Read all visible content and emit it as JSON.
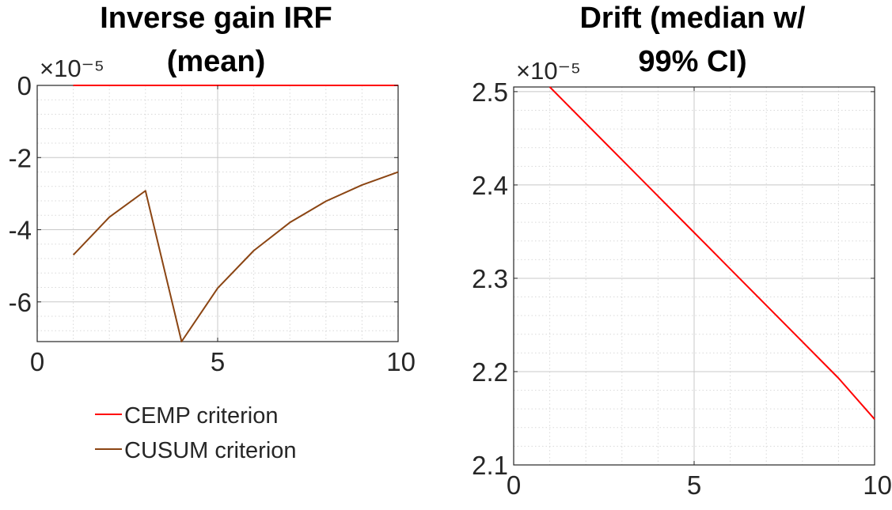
{
  "chart_data": [
    {
      "type": "line",
      "title_lines": [
        "Inverse gain IRF",
        "(mean)"
      ],
      "y_exponent": "×10⁻⁵",
      "xlim": [
        0,
        10
      ],
      "ylim": [
        -7.1,
        0
      ],
      "x_ticks": [
        "0",
        "5",
        "10"
      ],
      "y_ticks": [
        "0",
        "-2",
        "-4",
        "-6"
      ],
      "x_tick_values": [
        0,
        5,
        10
      ],
      "y_tick_values": [
        0,
        -2,
        -4,
        -6
      ],
      "grid": true,
      "minor_grid": true,
      "legend_position": "below",
      "colors": {
        "CEMP criterion": "#ff0000",
        "CUSUM criterion": "#8b4513"
      },
      "series": [
        {
          "name": "CEMP criterion",
          "x": [
            1,
            2,
            3,
            4,
            5,
            6,
            7,
            8,
            9,
            10
          ],
          "y": [
            0,
            0,
            0,
            0,
            0,
            0,
            0,
            0,
            0,
            0
          ]
        },
        {
          "name": "CUSUM criterion",
          "x": [
            1,
            2,
            3,
            4,
            5,
            6,
            7,
            8,
            9,
            10
          ],
          "y": [
            -4.7,
            -3.65,
            -2.92,
            -7.1,
            -5.62,
            -4.58,
            -3.8,
            -3.21,
            -2.76,
            -2.4
          ]
        }
      ]
    },
    {
      "type": "line",
      "title_lines": [
        "Drift (median w/",
        "99% CI)"
      ],
      "y_exponent": "×10⁻⁵",
      "xlim": [
        0,
        10
      ],
      "ylim": [
        2.1,
        2.505
      ],
      "x_ticks": [
        "0",
        "5",
        "10"
      ],
      "y_ticks": [
        "2.5",
        "2.4",
        "2.3",
        "2.2",
        "2.1"
      ],
      "x_tick_values": [
        0,
        5,
        10
      ],
      "y_tick_values": [
        2.5,
        2.4,
        2.3,
        2.2,
        2.1
      ],
      "grid": true,
      "minor_grid": true,
      "colors": {
        "line": "#ff0000"
      },
      "series": [
        {
          "x": [
            1,
            2,
            3,
            4,
            5,
            6,
            7,
            8,
            9,
            10
          ],
          "y": [
            2.505,
            2.466,
            2.427,
            2.388,
            2.349,
            2.31,
            2.271,
            2.232,
            2.193,
            2.149
          ]
        }
      ]
    }
  ]
}
